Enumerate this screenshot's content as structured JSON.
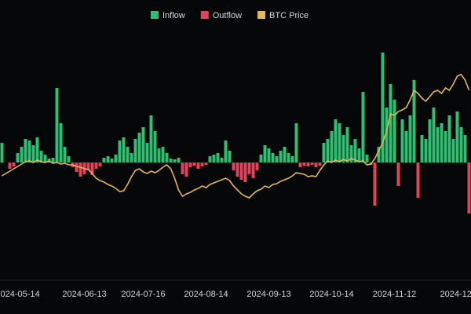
{
  "chart_data": {
    "type": "bar-line",
    "categories": [
      null,
      null,
      null,
      null,
      "2024-05-14",
      null,
      null,
      null,
      null,
      null,
      null,
      null,
      null,
      null,
      null,
      null,
      null,
      null,
      null,
      null,
      null,
      "2024-06-13",
      null,
      null,
      null,
      null,
      null,
      null,
      null,
      null,
      null,
      null,
      null,
      null,
      null,
      null,
      "2024-07-16",
      null,
      null,
      null,
      null,
      null,
      null,
      null,
      null,
      null,
      null,
      null,
      null,
      null,
      null,
      null,
      "2024-08-14",
      null,
      null,
      null,
      null,
      null,
      null,
      null,
      null,
      null,
      null,
      null,
      null,
      null,
      null,
      null,
      "2024-09-13",
      null,
      null,
      null,
      null,
      null,
      null,
      null,
      null,
      null,
      null,
      null,
      null,
      null,
      null,
      null,
      "2024-10-14",
      null,
      null,
      null,
      null,
      null,
      null,
      null,
      null,
      null,
      null,
      null,
      null,
      null,
      null,
      null,
      "2024-11-12",
      null,
      null,
      null,
      null,
      null,
      null,
      null,
      null,
      null,
      null,
      null,
      null,
      null,
      null,
      null,
      "2024-12-",
      null,
      null,
      null
    ],
    "series": [
      {
        "name": "Inflow",
        "color": "#2fbf71",
        "values": [
          25,
          null,
          null,
          null,
          12,
          20,
          30,
          28,
          22,
          32,
          15,
          10,
          5,
          6,
          95,
          50,
          20,
          8,
          null,
          null,
          null,
          null,
          null,
          null,
          null,
          null,
          6,
          8,
          5,
          10,
          28,
          32,
          20,
          12,
          30,
          38,
          45,
          25,
          60,
          40,
          18,
          20,
          12,
          5,
          4,
          6,
          null,
          null,
          null,
          null,
          null,
          null,
          null,
          8,
          10,
          12,
          6,
          28,
          15,
          null,
          null,
          null,
          null,
          null,
          null,
          null,
          10,
          22,
          18,
          12,
          8,
          15,
          20,
          12,
          8,
          50,
          null,
          null,
          null,
          null,
          null,
          null,
          25,
          30,
          40,
          55,
          50,
          35,
          45,
          22,
          30,
          18,
          90,
          10,
          null,
          null,
          20,
          140,
          70,
          100,
          80,
          null,
          55,
          40,
          60,
          105,
          null,
          35,
          30,
          55,
          70,
          45,
          50,
          40,
          60,
          30,
          65,
          45,
          35,
          null
        ]
      },
      {
        "name": "Outflow",
        "color": "#e0435a",
        "values": [
          null,
          null,
          -8,
          -5,
          null,
          null,
          null,
          null,
          null,
          null,
          null,
          null,
          null,
          null,
          null,
          null,
          null,
          null,
          -6,
          -12,
          -18,
          -15,
          -10,
          -16,
          -8,
          -5,
          null,
          null,
          null,
          null,
          null,
          null,
          null,
          null,
          null,
          null,
          null,
          null,
          null,
          null,
          null,
          null,
          null,
          null,
          null,
          null,
          -15,
          -18,
          -6,
          -4,
          -8,
          -5,
          -3,
          null,
          null,
          null,
          null,
          null,
          null,
          -10,
          -18,
          -22,
          -25,
          -15,
          -20,
          -10,
          null,
          null,
          null,
          null,
          null,
          null,
          null,
          null,
          null,
          null,
          -6,
          -4,
          -5,
          -3,
          -6,
          -4,
          null,
          null,
          null,
          null,
          null,
          null,
          null,
          null,
          null,
          null,
          null,
          null,
          -3,
          -55,
          null,
          null,
          null,
          null,
          null,
          -30,
          null,
          null,
          null,
          null,
          -45,
          null,
          null,
          null,
          null,
          null,
          null,
          null,
          null,
          null,
          null,
          null,
          null,
          -65
        ]
      },
      {
        "name": "BTC Price",
        "color": "#e8b755",
        "values": [
          -17,
          -14,
          -11,
          -8,
          -5,
          -2,
          1,
          2,
          0,
          3,
          1,
          0,
          2,
          -1,
          0,
          -2,
          -1,
          -3,
          -3,
          -5,
          -6,
          -8,
          -9,
          -14,
          -20,
          -23,
          -25,
          -28,
          -30,
          -33,
          -37,
          -36,
          -28,
          -18,
          -10,
          -8,
          -12,
          -14,
          -11,
          -13,
          -10,
          -6,
          -3,
          -8,
          -20,
          -35,
          -43,
          -40,
          -38,
          -35,
          -33,
          -30,
          -32,
          -28,
          -26,
          -24,
          -22,
          -20,
          -23,
          -30,
          -35,
          -40,
          -43,
          -45,
          -40,
          -36,
          -34,
          -30,
          -32,
          -28,
          -27,
          -24,
          -22,
          -20,
          -17,
          -13,
          -14,
          -15,
          -18,
          -17,
          -18,
          -10,
          -3,
          2,
          0,
          3,
          1,
          4,
          2,
          5,
          3,
          1,
          2,
          -3,
          -2,
          5,
          15,
          25,
          40,
          62,
          60,
          65,
          67,
          70,
          80,
          92,
          88,
          82,
          78,
          84,
          90,
          92,
          88,
          95,
          92,
          100,
          110,
          112,
          105,
          92
        ]
      }
    ],
    "ylim": [
      -150,
      150
    ]
  }
}
